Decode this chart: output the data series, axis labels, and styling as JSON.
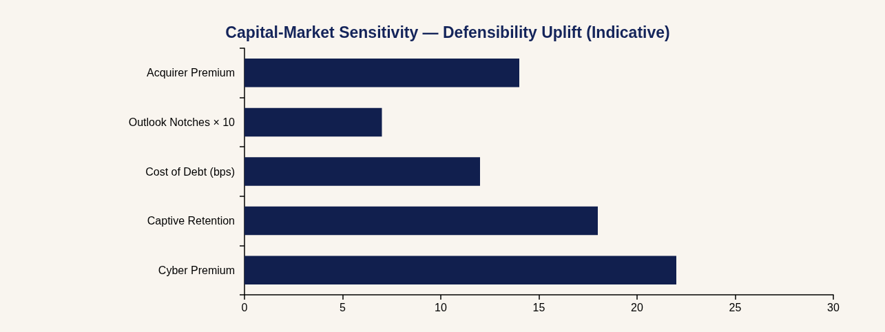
{
  "chart_data": {
    "type": "bar",
    "orientation": "horizontal",
    "title": "Capital-Market Sensitivity — Defensibility Uplift (Indicative)",
    "categories": [
      "Acquirer Premium",
      "Outlook Notches × 10",
      "Cost of Debt (bps)",
      "Captive Retention",
      "Cyber Premium"
    ],
    "values": [
      14,
      7,
      12,
      18,
      22
    ],
    "color": "#111f4e",
    "xlim": [
      0,
      30
    ],
    "xticks": [
      0,
      5,
      10,
      15,
      20,
      25,
      30
    ]
  }
}
